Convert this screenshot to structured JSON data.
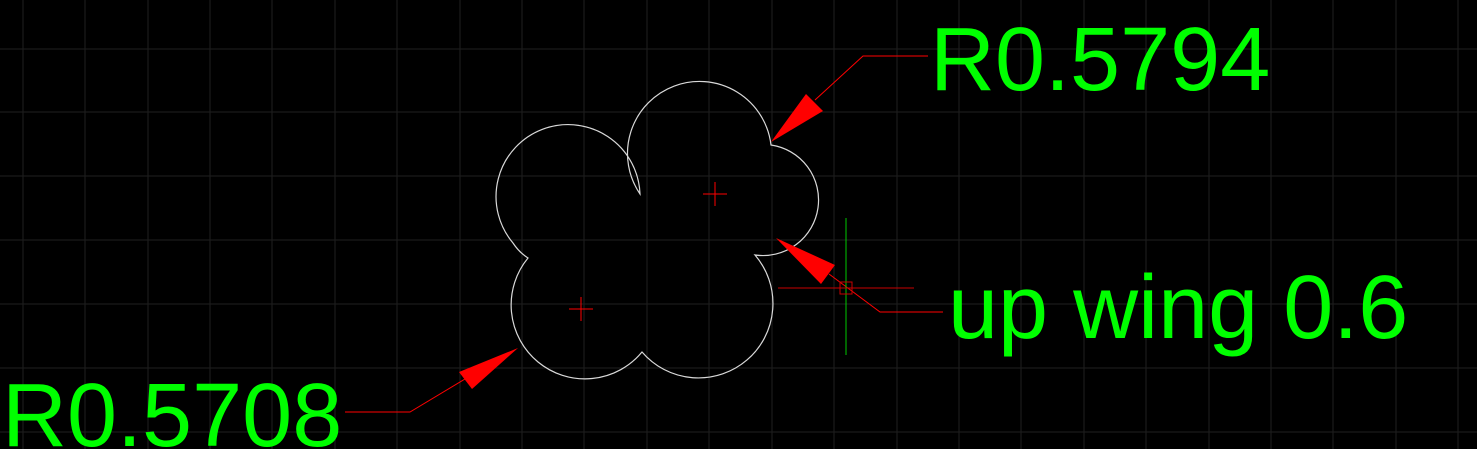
{
  "colors": {
    "background": "#000000",
    "grid": "#1f1f1f",
    "shape": "#d9d9d9",
    "leader": "#ff0000",
    "text": "#00ff00",
    "crosshair_vertical": "#00c800",
    "crosshair_horizontal": "#c80000"
  },
  "annotations": {
    "top_right": "R0.5794",
    "right": "up wing 0.6",
    "bottom_left": "R0.5708"
  }
}
